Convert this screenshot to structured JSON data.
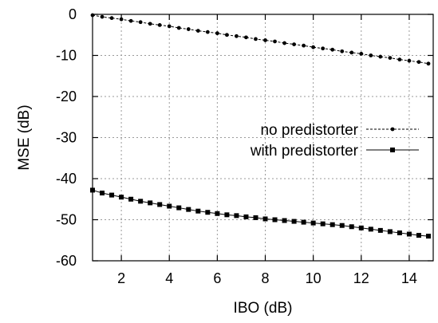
{
  "chart_data": {
    "type": "line",
    "title": "",
    "xlabel": "IBO (dB)",
    "ylabel": "MSE (dB)",
    "xlim": [
      0.8,
      15
    ],
    "ylim": [
      -60,
      0
    ],
    "xticks": [
      2,
      4,
      6,
      8,
      10,
      12,
      14
    ],
    "yticks": [
      0,
      -10,
      -20,
      -30,
      -40,
      -50,
      -60
    ],
    "grid": true,
    "legend_position": "right",
    "series": [
      {
        "name": "no predistorter",
        "marker": "circle",
        "line_style": "dashed",
        "x": [
          0.8,
          1.2,
          1.6,
          2.0,
          2.4,
          2.8,
          3.2,
          3.6,
          4.0,
          4.4,
          4.8,
          5.2,
          5.6,
          6.0,
          6.4,
          6.8,
          7.2,
          7.6,
          8.0,
          8.4,
          8.8,
          9.2,
          9.6,
          10.0,
          10.4,
          10.8,
          11.2,
          11.6,
          12.0,
          12.4,
          12.8,
          13.2,
          13.6,
          14.0,
          14.4,
          14.8
        ],
        "values": [
          -0.2,
          -0.6,
          -0.9,
          -1.2,
          -1.6,
          -1.9,
          -2.3,
          -2.6,
          -2.9,
          -3.3,
          -3.6,
          -4.0,
          -4.3,
          -4.6,
          -5.0,
          -5.3,
          -5.6,
          -6.0,
          -6.3,
          -6.6,
          -7.0,
          -7.3,
          -7.6,
          -8.0,
          -8.3,
          -8.6,
          -9.0,
          -9.3,
          -9.6,
          -10.0,
          -10.3,
          -10.6,
          -11.0,
          -11.3,
          -11.6,
          -12.0
        ]
      },
      {
        "name": "with predistorter",
        "marker": "square",
        "line_style": "solid",
        "x": [
          0.8,
          1.2,
          1.6,
          2.0,
          2.4,
          2.8,
          3.2,
          3.6,
          4.0,
          4.4,
          4.8,
          5.2,
          5.6,
          6.0,
          6.4,
          6.8,
          7.2,
          7.6,
          8.0,
          8.4,
          8.8,
          9.2,
          9.6,
          10.0,
          10.4,
          10.8,
          11.2,
          11.6,
          12.0,
          12.4,
          12.8,
          13.2,
          13.6,
          14.0,
          14.4,
          14.8
        ],
        "values": [
          -42.8,
          -43.5,
          -44.0,
          -44.5,
          -45.0,
          -45.5,
          -45.9,
          -46.3,
          -46.7,
          -47.1,
          -47.5,
          -47.9,
          -48.2,
          -48.5,
          -48.8,
          -49.0,
          -49.3,
          -49.5,
          -49.8,
          -50.0,
          -50.2,
          -50.4,
          -50.6,
          -50.8,
          -51.0,
          -51.2,
          -51.4,
          -51.7,
          -52.0,
          -52.3,
          -52.6,
          -52.9,
          -53.2,
          -53.5,
          -53.8,
          -54.0
        ]
      }
    ]
  }
}
